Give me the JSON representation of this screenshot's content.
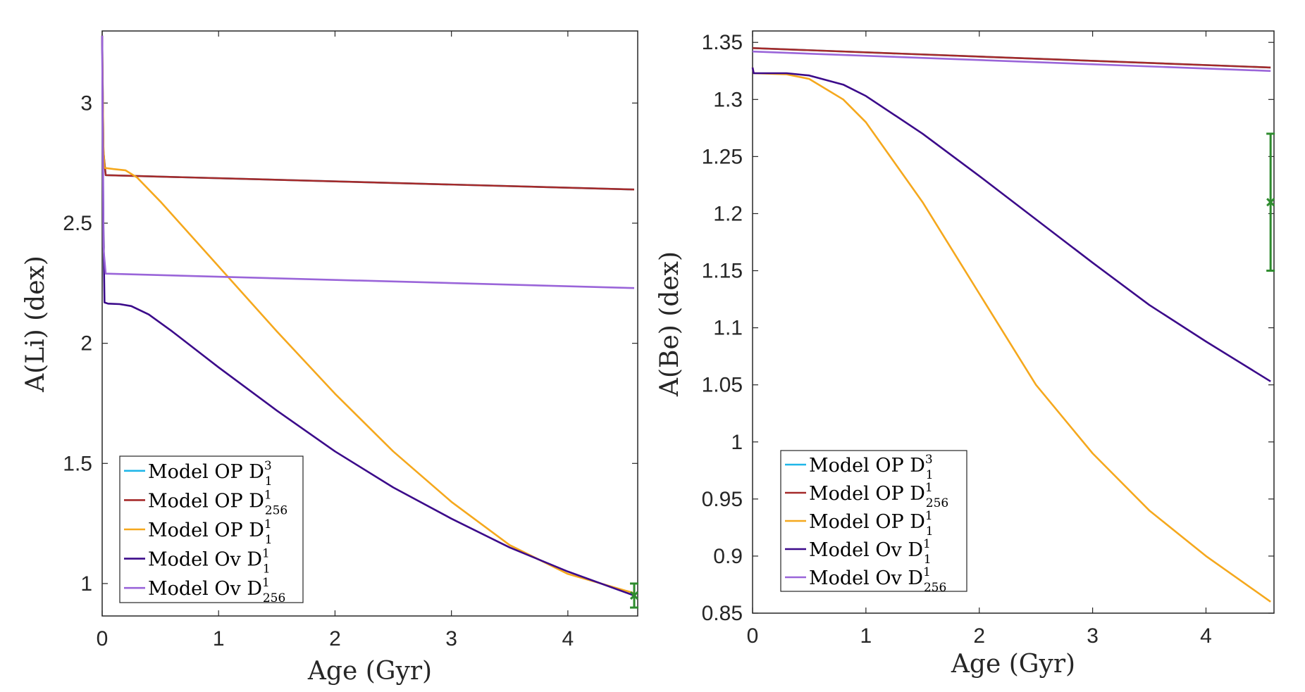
{
  "chart_data": [
    {
      "type": "line",
      "id": "li",
      "xlabel": "Age (Gyr)",
      "ylabel": "A(Li) (dex)",
      "xlim": [
        0,
        4.6
      ],
      "ylim": [
        0.865,
        3.3
      ],
      "xticks": [
        0,
        1,
        2,
        3,
        4
      ],
      "xtick_labels": [
        "0",
        "1",
        "2",
        "3",
        "4"
      ],
      "yticks": [
        1,
        1.5,
        2,
        2.5,
        3
      ],
      "ytick_labels": [
        "1",
        "1.5",
        "2",
        "2.5",
        "3"
      ],
      "legend_position": "bottom-left",
      "series": [
        {
          "name": "Model OP D",
          "sup": "3",
          "sub": "1",
          "color": "#1FB6E8",
          "x": [
            0,
            0.01,
            0.03,
            4.57
          ],
          "y": [
            3.28,
            2.8,
            2.7,
            2.64
          ]
        },
        {
          "name": "Model OP D",
          "sup": "1",
          "sub": "256",
          "color": "#A52A2A",
          "x": [
            0,
            0.01,
            0.03,
            4.57
          ],
          "y": [
            3.28,
            2.8,
            2.7,
            2.64
          ]
        },
        {
          "name": "Model OP D",
          "sup": "1",
          "sub": "1",
          "color": "#F5A81D",
          "x": [
            0,
            0.01,
            0.02,
            0.1,
            0.2,
            0.3,
            0.5,
            1.0,
            1.5,
            2.0,
            2.5,
            3.0,
            3.5,
            4.0,
            4.57
          ],
          "y": [
            3.28,
            2.82,
            2.73,
            2.725,
            2.72,
            2.69,
            2.59,
            2.32,
            2.05,
            1.79,
            1.55,
            1.34,
            1.16,
            1.04,
            0.96
          ]
        },
        {
          "name": "Model Ov D",
          "sup": "1",
          "sub": "1",
          "color": "#3B0A8A",
          "x": [
            0,
            0.01,
            0.02,
            0.05,
            0.15,
            0.25,
            0.4,
            0.6,
            1.0,
            1.5,
            2.0,
            2.5,
            3.0,
            3.5,
            4.0,
            4.57
          ],
          "y": [
            3.28,
            2.5,
            2.17,
            2.165,
            2.163,
            2.155,
            2.12,
            2.05,
            1.9,
            1.72,
            1.55,
            1.4,
            1.27,
            1.15,
            1.05,
            0.95
          ]
        },
        {
          "name": "Model Ov D",
          "sup": "1",
          "sub": "256",
          "color": "#9A65D9",
          "x": [
            0,
            0.01,
            0.03,
            4.57
          ],
          "y": [
            3.28,
            2.4,
            2.29,
            2.23
          ]
        }
      ],
      "errorbar": {
        "x": 4.57,
        "y": 0.95,
        "ylow": 0.9,
        "yhigh": 1.0,
        "color": "#2E8B2E"
      }
    },
    {
      "type": "line",
      "id": "be",
      "xlabel": "Age (Gyr)",
      "ylabel": "A(Be) (dex)",
      "xlim": [
        0,
        4.6
      ],
      "ylim": [
        0.85,
        1.36
      ],
      "xticks": [
        0,
        1,
        2,
        3,
        4
      ],
      "xtick_labels": [
        "0",
        "1",
        "2",
        "3",
        "4"
      ],
      "yticks": [
        0.85,
        0.9,
        0.95,
        1,
        1.05,
        1.1,
        1.15,
        1.2,
        1.25,
        1.3,
        1.35
      ],
      "ytick_labels": [
        "0.85",
        "0.9",
        "0.95",
        "1",
        "1.05",
        "1.1",
        "1.15",
        "1.2",
        "1.25",
        "1.3",
        "1.35"
      ],
      "legend_position": "bottom-left",
      "series": [
        {
          "name": "Model OP D",
          "sup": "3",
          "sub": "1",
          "color": "#1FB6E8",
          "x": [
            0,
            4.57
          ],
          "y": [
            1.345,
            1.328
          ]
        },
        {
          "name": "Model OP D",
          "sup": "1",
          "sub": "256",
          "color": "#A52A2A",
          "x": [
            0,
            4.57
          ],
          "y": [
            1.345,
            1.328
          ]
        },
        {
          "name": "Model OP D",
          "sup": "1",
          "sub": "1",
          "color": "#F5A81D",
          "x": [
            0,
            0.01,
            0.3,
            0.5,
            0.8,
            1.0,
            1.5,
            2.0,
            2.5,
            3.0,
            3.5,
            4.0,
            4.57
          ],
          "y": [
            1.328,
            1.323,
            1.322,
            1.318,
            1.3,
            1.28,
            1.21,
            1.13,
            1.05,
            0.99,
            0.94,
            0.9,
            0.86
          ]
        },
        {
          "name": "Model Ov D",
          "sup": "1",
          "sub": "1",
          "color": "#3B0A8A",
          "x": [
            0,
            0.01,
            0.3,
            0.5,
            0.8,
            1.0,
            1.5,
            2.0,
            2.5,
            3.0,
            3.5,
            4.0,
            4.57
          ],
          "y": [
            1.328,
            1.323,
            1.323,
            1.321,
            1.313,
            1.303,
            1.27,
            1.233,
            1.195,
            1.157,
            1.12,
            1.088,
            1.053
          ]
        },
        {
          "name": "Model Ov D",
          "sup": "1",
          "sub": "256",
          "color": "#9A65D9",
          "x": [
            0,
            4.57
          ],
          "y": [
            1.342,
            1.325
          ]
        }
      ],
      "errorbar": {
        "x": 4.57,
        "y": 1.21,
        "ylow": 1.15,
        "yhigh": 1.27,
        "color": "#2E8B2E"
      }
    }
  ]
}
